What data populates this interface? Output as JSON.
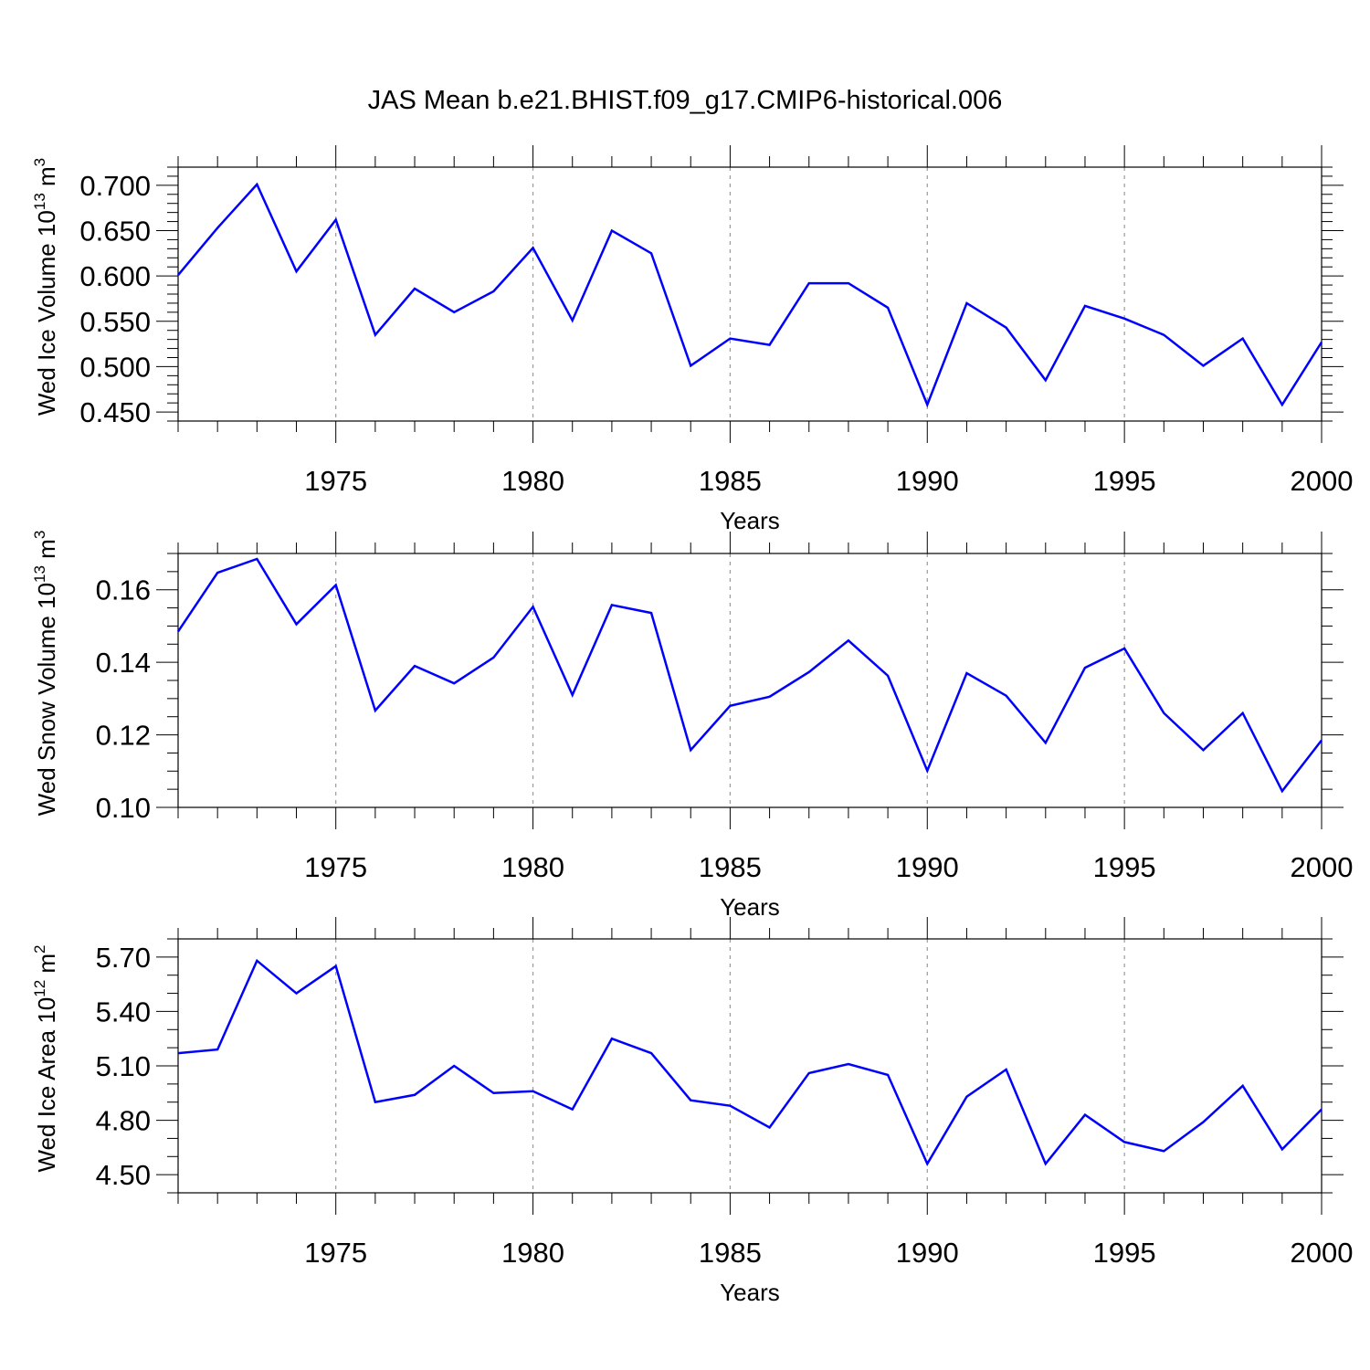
{
  "title": "JAS Mean b.e21.BHIST.f09_g17.CMIP6-historical.006",
  "chart_data": [
    {
      "type": "line",
      "ylabel": "Wed Ice Volume 10",
      "ylabel_exp": "13",
      "ylabel_unit": " m",
      "ylabel_unit_exp": "3",
      "xlabel": "Years",
      "xlim": [
        1971,
        2000
      ],
      "ylim": [
        0.44,
        0.72
      ],
      "yticks": [
        0.45,
        0.5,
        0.55,
        0.6,
        0.65,
        0.7
      ],
      "ytick_labels": [
        "0.450",
        "0.500",
        "0.550",
        "0.600",
        "0.650",
        "0.700"
      ],
      "yminor": 0.01,
      "xticks": [
        1975,
        1980,
        1985,
        1990,
        1995,
        2000
      ],
      "xtick_labels": [
        "1975",
        "1980",
        "1985",
        "1990",
        "1995",
        "2000"
      ],
      "x": [
        1971,
        1972,
        1973,
        1974,
        1975,
        1976,
        1977,
        1978,
        1979,
        1980,
        1981,
        1982,
        1983,
        1984,
        1985,
        1986,
        1987,
        1988,
        1989,
        1990,
        1991,
        1992,
        1993,
        1994,
        1995,
        1996,
        1997,
        1998,
        1999,
        2000
      ],
      "values": [
        0.601,
        0.653,
        0.701,
        0.605,
        0.662,
        0.535,
        0.586,
        0.56,
        0.583,
        0.631,
        0.551,
        0.65,
        0.625,
        0.501,
        0.531,
        0.524,
        0.592,
        0.592,
        0.565,
        0.458,
        0.57,
        0.543,
        0.485,
        0.567,
        0.553,
        0.535,
        0.501,
        0.531,
        0.458,
        0.527
      ],
      "color": "#0000ff"
    },
    {
      "type": "line",
      "ylabel": "Wed Snow Volume 10",
      "ylabel_exp": "13",
      "ylabel_unit": " m",
      "ylabel_unit_exp": "3",
      "xlabel": "Years",
      "xlim": [
        1971,
        2000
      ],
      "ylim": [
        0.1,
        0.17
      ],
      "yticks": [
        0.1,
        0.12,
        0.14,
        0.16
      ],
      "ytick_labels": [
        "0.10",
        "0.12",
        "0.14",
        "0.16"
      ],
      "yminor": 0.005,
      "xticks": [
        1975,
        1980,
        1985,
        1990,
        1995,
        2000
      ],
      "xtick_labels": [
        "1975",
        "1980",
        "1985",
        "1990",
        "1995",
        "2000"
      ],
      "x": [
        1971,
        1972,
        1973,
        1974,
        1975,
        1976,
        1977,
        1978,
        1979,
        1980,
        1981,
        1982,
        1983,
        1984,
        1985,
        1986,
        1987,
        1988,
        1989,
        1990,
        1991,
        1992,
        1993,
        1994,
        1995,
        1996,
        1997,
        1998,
        1999,
        2000
      ],
      "values": [
        0.1485,
        0.1647,
        0.1685,
        0.1505,
        0.1613,
        0.1267,
        0.139,
        0.1342,
        0.1413,
        0.1553,
        0.131,
        0.1558,
        0.1536,
        0.1158,
        0.128,
        0.1305,
        0.1373,
        0.146,
        0.1363,
        0.1101,
        0.137,
        0.1308,
        0.1178,
        0.1385,
        0.1438,
        0.126,
        0.1158,
        0.126,
        0.1045,
        0.1185
      ],
      "color": "#0000ff"
    },
    {
      "type": "line",
      "ylabel": "Wed Ice Area 10",
      "ylabel_exp": "12",
      "ylabel_unit": " m",
      "ylabel_unit_exp": "2",
      "xlabel": "Years",
      "xlim": [
        1971,
        2000
      ],
      "ylim": [
        4.4,
        5.8
      ],
      "yticks": [
        4.5,
        4.8,
        5.1,
        5.4,
        5.7
      ],
      "ytick_labels": [
        "4.50",
        "4.80",
        "5.10",
        "5.40",
        "5.70"
      ],
      "yminor": 0.1,
      "xticks": [
        1975,
        1980,
        1985,
        1990,
        1995,
        2000
      ],
      "xtick_labels": [
        "1975",
        "1980",
        "1985",
        "1990",
        "1995",
        "2000"
      ],
      "x": [
        1971,
        1972,
        1973,
        1974,
        1975,
        1976,
        1977,
        1978,
        1979,
        1980,
        1981,
        1982,
        1983,
        1984,
        1985,
        1986,
        1987,
        1988,
        1989,
        1990,
        1991,
        1992,
        1993,
        1994,
        1995,
        1996,
        1997,
        1998,
        1999,
        2000
      ],
      "values": [
        5.17,
        5.19,
        5.68,
        5.5,
        5.65,
        4.9,
        4.94,
        5.1,
        4.95,
        4.96,
        4.86,
        5.25,
        5.17,
        4.91,
        4.88,
        4.76,
        5.06,
        5.11,
        5.05,
        4.56,
        4.93,
        5.08,
        4.56,
        4.83,
        4.68,
        4.63,
        4.79,
        4.99,
        4.64,
        4.86
      ],
      "color": "#0000ff"
    }
  ]
}
